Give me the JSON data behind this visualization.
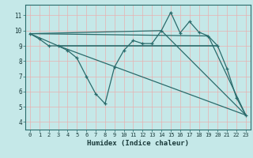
{
  "xlabel": "Humidex (Indice chaleur)",
  "xlim": [
    -0.5,
    23.5
  ],
  "ylim": [
    3.5,
    11.7
  ],
  "xticks": [
    0,
    1,
    2,
    3,
    4,
    5,
    6,
    7,
    8,
    9,
    10,
    11,
    12,
    13,
    14,
    15,
    16,
    17,
    18,
    19,
    20,
    21,
    22,
    23
  ],
  "yticks": [
    4,
    5,
    6,
    7,
    8,
    9,
    10,
    11
  ],
  "bg_color": "#c5e8e8",
  "grid_color": "#e8b0b0",
  "line_color": "#2a6b6b",
  "line1_x": [
    0,
    1,
    2,
    3,
    4,
    5,
    6,
    7,
    8,
    9,
    10,
    11,
    12,
    13,
    14,
    15,
    16,
    17,
    18,
    19,
    20,
    21,
    22,
    23
  ],
  "line1_y": [
    9.8,
    9.45,
    9.0,
    9.0,
    8.7,
    8.2,
    7.0,
    5.85,
    5.2,
    7.6,
    8.7,
    9.35,
    9.15,
    9.15,
    10.0,
    11.2,
    9.85,
    10.6,
    9.9,
    9.65,
    9.0,
    7.5,
    5.6,
    4.45
  ],
  "line2_x": [
    0,
    3,
    23
  ],
  "line2_y": [
    9.8,
    9.0,
    4.45
  ],
  "line3_x": [
    0,
    14,
    23
  ],
  "line3_y": [
    9.8,
    10.0,
    4.45
  ],
  "line4_x": [
    0,
    19,
    23
  ],
  "line4_y": [
    9.8,
    9.65,
    4.45
  ],
  "hline_x": [
    3,
    20
  ],
  "hline_y": [
    9.0,
    9.0
  ]
}
